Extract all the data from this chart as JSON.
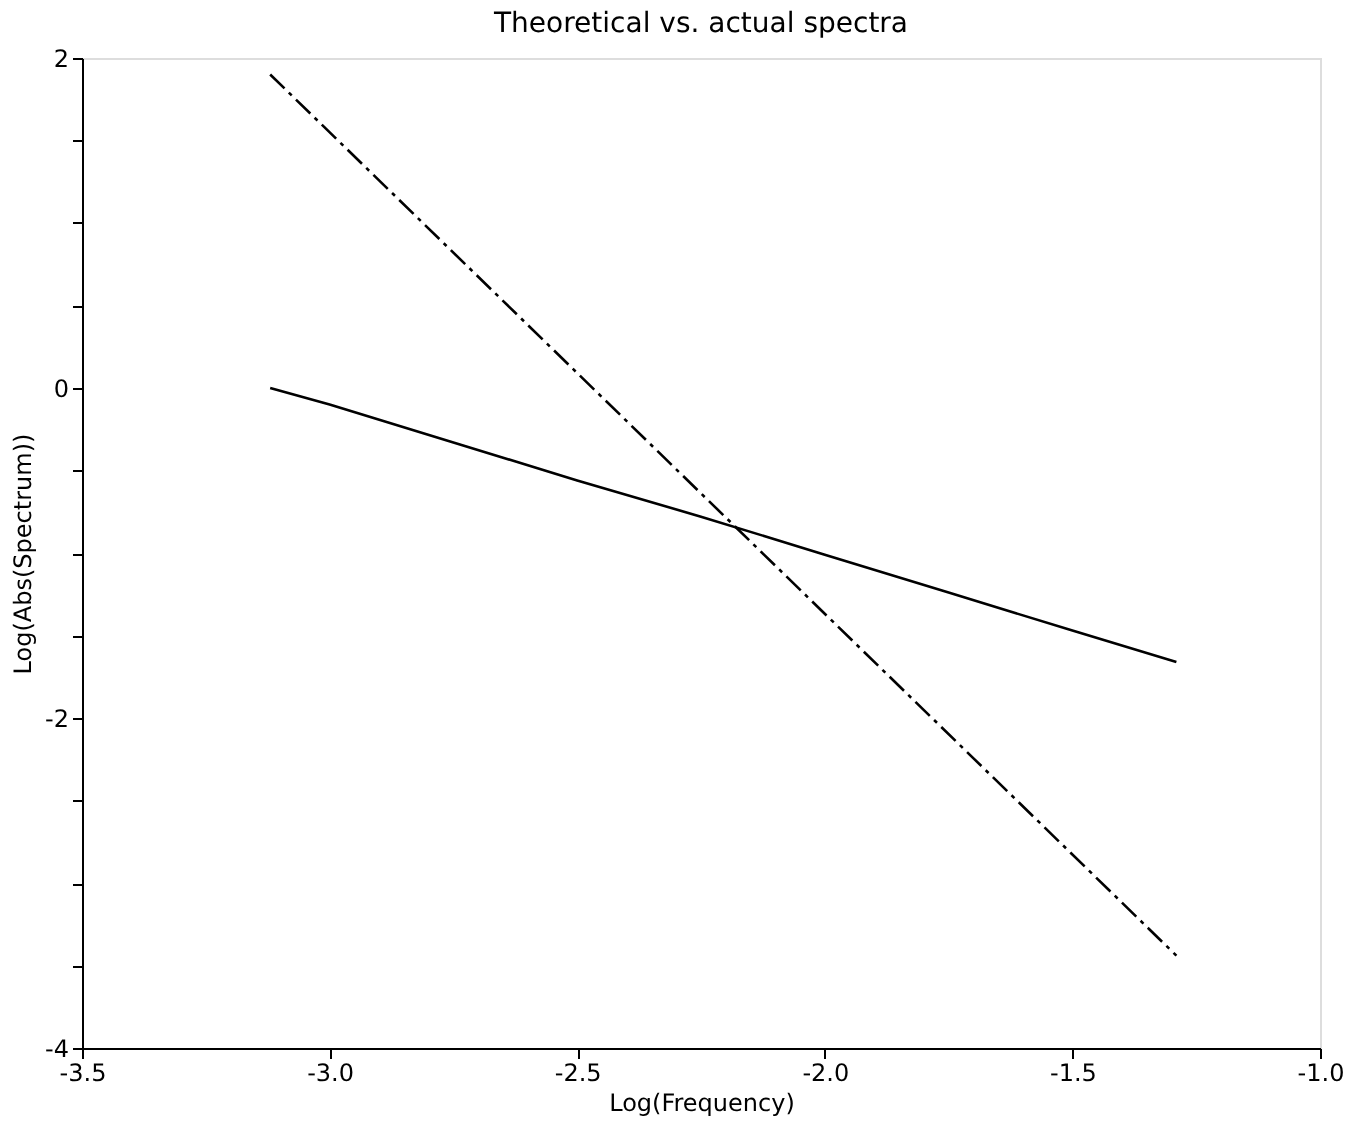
{
  "chart_data": {
    "type": "line",
    "title": "Theoretical vs. actual spectra",
    "xlabel": "Log(Frequency)",
    "ylabel": "Log(Abs(Spectrum))",
    "series": [
      {
        "line_style": "solid",
        "color": "#000000",
        "x": [
          -3.12,
          -3.0,
          -2.75,
          -2.5,
          -2.25,
          -2.0,
          -1.75,
          -1.5,
          -1.29
        ],
        "values": [
          0.0,
          -0.1,
          -0.33,
          -0.56,
          -0.78,
          -1.01,
          -1.24,
          -1.47,
          -1.66
        ]
      },
      {
        "line_style": "dashed",
        "color": "#000000",
        "x": [
          -3.12,
          -1.29
        ],
        "values": [
          1.9,
          -3.44
        ]
      }
    ],
    "xlim": [
      -3.5,
      -1.0
    ],
    "xticks": [
      {
        "value": -3.5,
        "label": "-3.5"
      },
      {
        "value": -3.0,
        "label": "-3.0"
      },
      {
        "value": -2.5,
        "label": "-2.5"
      },
      {
        "value": -2.0,
        "label": "-2.0"
      },
      {
        "value": -1.5,
        "label": "-1.5"
      },
      {
        "value": -1.0,
        "label": "-1.0"
      }
    ],
    "ylim": [
      -4,
      2
    ],
    "yticks": [
      -4,
      {
        "value": -3.5,
        "label": null
      },
      {
        "value": -3,
        "label": null
      },
      {
        "value": -2.5,
        "label": null
      },
      -2,
      {
        "value": -1.5,
        "label": null
      },
      {
        "value": -1,
        "label": null
      },
      {
        "value": -0.5,
        "label": null
      },
      0,
      {
        "value": 0.5,
        "label": null
      },
      {
        "value": 1,
        "label": null
      },
      {
        "value": 1.5,
        "label": null
      },
      2
    ],
    "grid": false,
    "legend": false
  }
}
